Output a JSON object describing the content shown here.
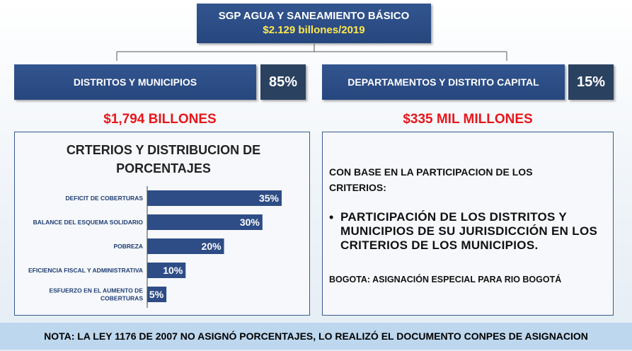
{
  "header": {
    "title": "SGP AGUA Y SANEAMIENTO BÁSICO",
    "amount": "$2.129 billones/2019"
  },
  "left": {
    "label": "DISTRITOS Y MUNICIPIOS",
    "percent": "85%",
    "amount": "$1,794 BILLONES"
  },
  "right": {
    "label": "DEPARTAMENTOS Y DISTRITO CAPITAL",
    "percent": "15%",
    "amount": "$335 MIL MILLONES",
    "intro": "CON BASE  EN LA PARTICIPACION DE LOS CRITERIOS:",
    "bullet": "PARTICIPACIÓN DE LOS DISTRITOS Y MUNICIPIOS DE SU JURISDICCIÓN EN LOS CRITERIOS DE LOS MUNICIPIOS.",
    "note": "BOGOTA: ASIGNACIÓN ESPECIAL PARA RIO BOGOTÁ"
  },
  "chart_data": {
    "type": "bar",
    "title": "CRTERIOS Y DISTRIBUCION DE PORCENTAJES",
    "categories": [
      "DEFICIT DE COBERTURAS",
      "BALANCE DEL ESQUEMA SOLIDARIO",
      "POBREZA",
      "EFICIENCIA FISCAL Y ADMINISTRATIVA",
      "ESFUERZO EN EL AUMENTO DE COBERTURAS"
    ],
    "values": [
      35,
      30,
      20,
      10,
      5
    ],
    "data_labels": [
      "35%",
      "30%",
      "20%",
      "10%",
      "5%"
    ],
    "orientation": "horizontal",
    "xlim": [
      0,
      35
    ],
    "grid": false,
    "bar_color": "#2e4d86"
  },
  "footer": {
    "note": "NOTA: LA LEY 1176 DE 2007  NO ASIGNÓ PORCENTAJES, LO REALIZÓ EL DOCUMENTO CONPES DE ASIGNACION"
  }
}
